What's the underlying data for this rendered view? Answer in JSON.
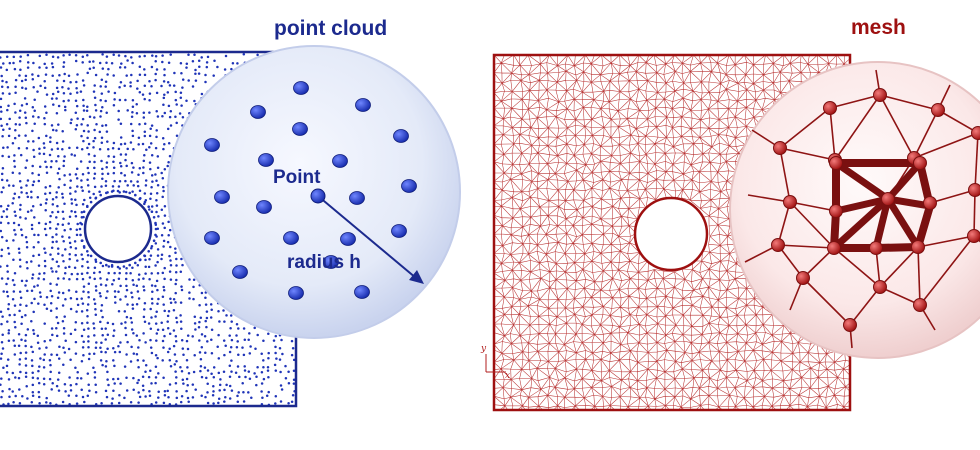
{
  "titles": {
    "left": "point cloud",
    "right": "mesh"
  },
  "annotations": {
    "point": "Point",
    "radius": "radius h"
  },
  "axes_marks": {
    "y": "y",
    "x": "x"
  },
  "colors": {
    "point_blue": "#1f34b8",
    "title_blue": "#1c2a8e",
    "mesh_red": "#b01c1c",
    "title_red": "#9e1010",
    "zoom_blue_fill": "#e6ecf8",
    "zoom_red_fill": "#fbe9e9"
  }
}
